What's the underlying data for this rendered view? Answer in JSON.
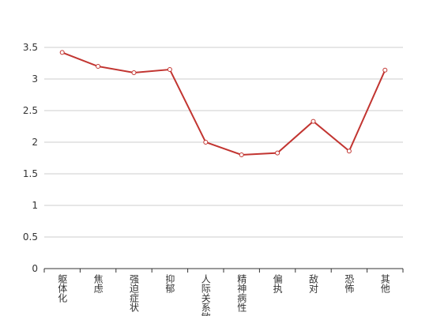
{
  "chart_data": {
    "type": "line",
    "categories": [
      "躯体化",
      "焦虑",
      "强迫症状",
      "抑郁",
      "人际关系敏感",
      "精神病性",
      "偏执",
      "敌对",
      "恐怖",
      "其他"
    ],
    "series": [
      {
        "name": "",
        "color": "#c23531",
        "values": [
          3.42,
          3.2,
          3.1,
          3.15,
          2.0,
          1.8,
          1.83,
          2.33,
          1.86,
          3.14
        ]
      }
    ],
    "ylim": [
      0,
      3.5
    ],
    "yticks": [
      0,
      0.5,
      1,
      1.5,
      2,
      2.5,
      3,
      3.5
    ],
    "grid": true
  }
}
